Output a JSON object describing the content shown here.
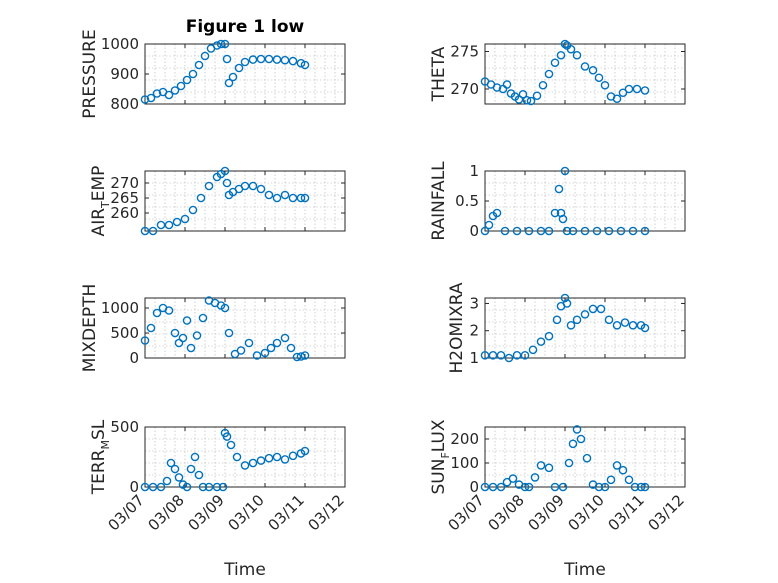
{
  "figure": {
    "title": "Figure 1 low",
    "xlabel": "Time",
    "color": "#0072BD",
    "xtick_labels": [
      "03/07",
      "03/08",
      "03/09",
      "03/10",
      "03/11",
      "03/12"
    ]
  },
  "chart_data": [
    {
      "type": "scatter",
      "ylabel": "PRESSURE",
      "ylim": [
        800,
        1000
      ],
      "yticks": [
        800,
        900,
        1000
      ],
      "xlim": [
        0,
        5
      ],
      "grid": true,
      "x": [
        0,
        0.15,
        0.3,
        0.45,
        0.6,
        0.75,
        0.9,
        1.05,
        1.2,
        1.35,
        1.5,
        1.65,
        1.8,
        1.9,
        2.0,
        2.05,
        2.1,
        2.2,
        2.35,
        2.5,
        2.7,
        2.9,
        3.1,
        3.3,
        3.5,
        3.7,
        3.9,
        4.0
      ],
      "y": [
        815,
        820,
        835,
        840,
        830,
        845,
        860,
        880,
        900,
        930,
        960,
        985,
        995,
        1000,
        1000,
        950,
        870,
        890,
        920,
        940,
        948,
        950,
        950,
        948,
        946,
        943,
        936,
        930
      ]
    },
    {
      "type": "scatter",
      "ylabel": "THETA",
      "ylim": [
        268,
        276
      ],
      "yticks": [
        270,
        275
      ],
      "xlim": [
        0,
        5
      ],
      "grid": true,
      "x": [
        0,
        0.15,
        0.3,
        0.45,
        0.55,
        0.65,
        0.75,
        0.85,
        0.95,
        1.05,
        1.15,
        1.3,
        1.45,
        1.6,
        1.75,
        1.9,
        2.0,
        2.05,
        2.15,
        2.3,
        2.5,
        2.7,
        2.85,
        3.0,
        3.15,
        3.3,
        3.45,
        3.6,
        3.8,
        4.0
      ],
      "y": [
        271,
        270.6,
        270.2,
        270,
        270.6,
        269.4,
        269,
        268.6,
        269.3,
        268.5,
        268.4,
        269.1,
        270.5,
        272,
        273.5,
        274.5,
        276,
        275.8,
        275.3,
        274.5,
        273,
        272.5,
        271.5,
        270.5,
        269,
        268.7,
        269.5,
        270,
        270,
        269.8
      ]
    },
    {
      "type": "scatter",
      "ylabel": "AIR_TEMP",
      "ylim": [
        254,
        274
      ],
      "yticks": [
        260,
        265,
        270
      ],
      "xlim": [
        0,
        5
      ],
      "grid": true,
      "x": [
        0,
        0.2,
        0.4,
        0.6,
        0.8,
        1.0,
        1.2,
        1.4,
        1.6,
        1.8,
        1.9,
        2.0,
        2.05,
        2.1,
        2.2,
        2.35,
        2.5,
        2.7,
        2.9,
        3.1,
        3.3,
        3.5,
        3.7,
        3.9,
        4.0
      ],
      "y": [
        254,
        254,
        256,
        256,
        257,
        258,
        261,
        265,
        269,
        272,
        273,
        274,
        270,
        266,
        267,
        268,
        269,
        269,
        268,
        266,
        265,
        266,
        265,
        265,
        265
      ]
    },
    {
      "type": "scatter",
      "ylabel": "RAINFALL",
      "ylim": [
        0,
        1
      ],
      "yticks": [
        0,
        0.5,
        1
      ],
      "ytick_labels": [
        "0",
        "0.5",
        "1"
      ],
      "xlim": [
        0,
        5
      ],
      "grid": true,
      "x": [
        0,
        0.1,
        0.2,
        0.3,
        0.5,
        0.8,
        1.1,
        1.4,
        1.6,
        1.75,
        1.85,
        1.9,
        1.95,
        2.0,
        2.05,
        2.2,
        2.5,
        2.8,
        3.1,
        3.4,
        3.7,
        4.0
      ],
      "y": [
        0,
        0.1,
        0.25,
        0.3,
        0,
        0,
        0,
        0,
        0,
        0.3,
        0.7,
        0.3,
        0.2,
        1.0,
        0,
        0,
        0,
        0,
        0,
        0,
        0,
        0
      ]
    },
    {
      "type": "scatter",
      "ylabel": "MIXDEPTH",
      "ylim": [
        0,
        1200
      ],
      "yticks": [
        0,
        500,
        1000
      ],
      "xlim": [
        0,
        5
      ],
      "grid": true,
      "x": [
        0,
        0.15,
        0.3,
        0.45,
        0.6,
        0.75,
        0.85,
        0.95,
        1.05,
        1.15,
        1.3,
        1.45,
        1.6,
        1.75,
        1.9,
        2.0,
        2.1,
        2.25,
        2.4,
        2.6,
        2.8,
        3.0,
        3.15,
        3.3,
        3.5,
        3.65,
        3.8,
        3.9,
        4.0
      ],
      "y": [
        350,
        600,
        900,
        1000,
        950,
        500,
        300,
        400,
        750,
        200,
        450,
        800,
        1150,
        1100,
        1050,
        1000,
        500,
        80,
        150,
        300,
        50,
        100,
        200,
        300,
        400,
        200,
        20,
        30,
        50
      ]
    },
    {
      "type": "scatter",
      "ylabel": "H2OMIXRA",
      "ylim": [
        1,
        3.2
      ],
      "yticks": [
        1,
        2,
        3
      ],
      "xlim": [
        0,
        5
      ],
      "grid": true,
      "x": [
        0,
        0.2,
        0.4,
        0.6,
        0.8,
        1.0,
        1.2,
        1.4,
        1.6,
        1.8,
        1.9,
        2.0,
        2.05,
        2.15,
        2.3,
        2.5,
        2.7,
        2.9,
        3.1,
        3.3,
        3.5,
        3.7,
        3.9,
        4.0
      ],
      "y": [
        1.1,
        1.1,
        1.1,
        1.0,
        1.1,
        1.1,
        1.3,
        1.6,
        1.8,
        2.4,
        2.9,
        3.2,
        3.0,
        2.2,
        2.4,
        2.6,
        2.8,
        2.8,
        2.4,
        2.2,
        2.3,
        2.2,
        2.2,
        2.1
      ]
    },
    {
      "type": "scatter",
      "ylabel": "TERR_MSL",
      "ylim": [
        0,
        500
      ],
      "yticks": [
        0,
        500
      ],
      "xlim": [
        0,
        5
      ],
      "grid": true,
      "x": [
        0,
        0.2,
        0.4,
        0.55,
        0.65,
        0.75,
        0.85,
        0.95,
        1.05,
        1.15,
        1.25,
        1.35,
        1.45,
        1.6,
        1.8,
        1.95,
        2.0,
        2.05,
        2.15,
        2.3,
        2.5,
        2.7,
        2.9,
        3.1,
        3.3,
        3.5,
        3.7,
        3.9,
        4.0
      ],
      "y": [
        0,
        0,
        0,
        50,
        200,
        150,
        80,
        20,
        0,
        150,
        250,
        100,
        0,
        0,
        0,
        0,
        450,
        420,
        350,
        250,
        180,
        200,
        220,
        240,
        250,
        230,
        260,
        280,
        300
      ]
    },
    {
      "type": "scatter",
      "ylabel": "SUN_FLUX",
      "ylim": [
        0,
        250
      ],
      "yticks": [
        0,
        100,
        200
      ],
      "xlim": [
        0,
        5
      ],
      "grid": true,
      "x": [
        0,
        0.2,
        0.4,
        0.55,
        0.7,
        0.85,
        1.0,
        1.1,
        1.25,
        1.4,
        1.6,
        1.75,
        1.95,
        2.1,
        2.2,
        2.3,
        2.4,
        2.55,
        2.7,
        2.85,
        3.0,
        3.15,
        3.3,
        3.45,
        3.6,
        3.75,
        3.9,
        4.0
      ],
      "y": [
        0,
        0,
        0,
        20,
        35,
        10,
        0,
        0,
        40,
        90,
        80,
        0,
        0,
        100,
        180,
        240,
        200,
        120,
        10,
        0,
        0,
        30,
        90,
        70,
        30,
        0,
        0,
        0
      ]
    }
  ]
}
